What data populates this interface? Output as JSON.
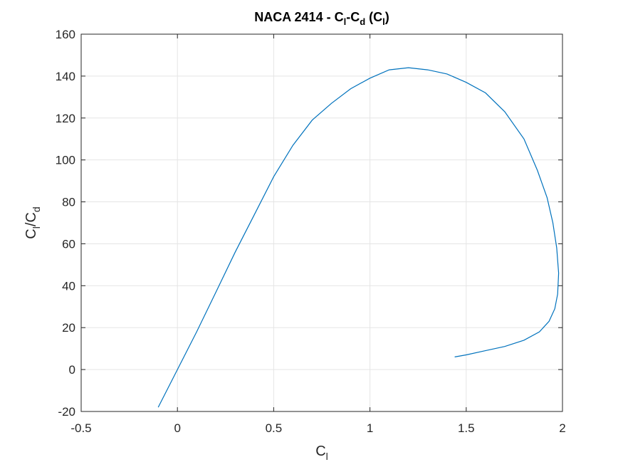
{
  "chart_data": {
    "type": "line",
    "title": {
      "main": "NACA 2414 - C",
      "sub1": "l",
      "mid1": "-C",
      "sub2": "d",
      "mid2": " (C",
      "sub3": "l",
      "end": ")"
    },
    "xlabel": {
      "main": "C",
      "sub": "l"
    },
    "ylabel": {
      "a": "C",
      "a_sub": "l",
      "b": "/C",
      "b_sub": "d"
    },
    "xlim": [
      -0.5,
      2
    ],
    "ylim": [
      -20,
      160
    ],
    "xticks": [
      -0.5,
      0,
      0.5,
      1,
      1.5,
      2
    ],
    "xtick_labels": [
      "-0.5",
      "0",
      "0.5",
      "1",
      "1.5",
      "2"
    ],
    "yticks": [
      -20,
      0,
      20,
      40,
      60,
      80,
      100,
      120,
      140,
      160
    ],
    "ytick_labels": [
      "-20",
      "0",
      "20",
      "40",
      "60",
      "80",
      "100",
      "120",
      "140",
      "160"
    ],
    "grid": true,
    "series": [
      {
        "color": "#0072bd",
        "points": [
          [
            -0.1,
            -18
          ],
          [
            0.0,
            0
          ],
          [
            0.1,
            18
          ],
          [
            0.2,
            37
          ],
          [
            0.3,
            56
          ],
          [
            0.4,
            74
          ],
          [
            0.5,
            92
          ],
          [
            0.6,
            107
          ],
          [
            0.7,
            119
          ],
          [
            0.8,
            127
          ],
          [
            0.9,
            134
          ],
          [
            1.0,
            139
          ],
          [
            1.1,
            143
          ],
          [
            1.2,
            144
          ],
          [
            1.3,
            143
          ],
          [
            1.4,
            141
          ],
          [
            1.5,
            137
          ],
          [
            1.6,
            132
          ],
          [
            1.7,
            123
          ],
          [
            1.8,
            110
          ],
          [
            1.87,
            95
          ],
          [
            1.92,
            82
          ],
          [
            1.95,
            70
          ],
          [
            1.97,
            58
          ],
          [
            1.98,
            46
          ],
          [
            1.975,
            36
          ],
          [
            1.96,
            29
          ],
          [
            1.93,
            23
          ],
          [
            1.88,
            18
          ],
          [
            1.8,
            14
          ],
          [
            1.7,
            11
          ],
          [
            1.6,
            9
          ],
          [
            1.5,
            7
          ],
          [
            1.44,
            6
          ]
        ]
      }
    ]
  }
}
